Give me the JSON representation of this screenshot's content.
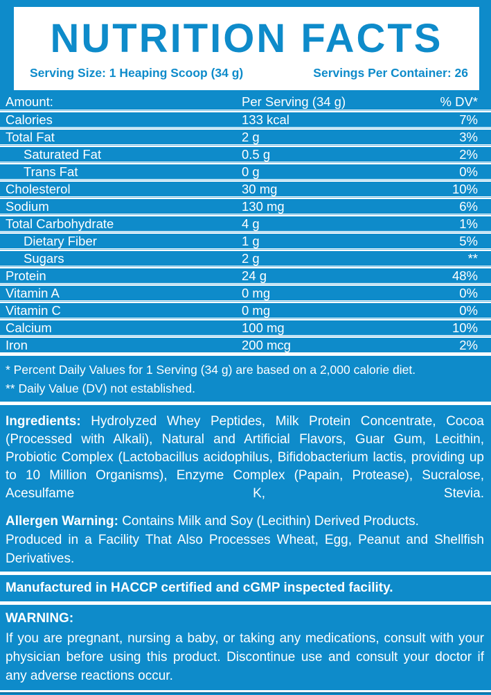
{
  "colors": {
    "background_blue": "#0e8bca",
    "text_white": "#ffffff",
    "separator_gap_blue": "#66b8e2"
  },
  "header": {
    "title": "NUTRITION FACTS",
    "serving_size": "Serving Size: 1 Heaping Scoop (34 g)",
    "servings_per_container": "Servings Per Container: 26"
  },
  "table": {
    "columns": {
      "amount": "Amount:",
      "per_serving": "Per Serving (34 g)",
      "daily_value": "% DV*"
    },
    "rows": [
      {
        "label": "Calories",
        "value": "133 kcal",
        "dv": "7%",
        "indent": false
      },
      {
        "label": "Total Fat",
        "value": "2 g",
        "dv": "3%",
        "indent": false
      },
      {
        "label": "Saturated Fat",
        "value": "0.5 g",
        "dv": "2%",
        "indent": true
      },
      {
        "label": "Trans Fat",
        "value": "0 g",
        "dv": "0%",
        "indent": true
      },
      {
        "label": "Cholesterol",
        "value": "30 mg",
        "dv": "10%",
        "indent": false
      },
      {
        "label": "Sodium",
        "value": "130 mg",
        "dv": "6%",
        "indent": false
      },
      {
        "label": "Total Carbohydrate",
        "value": "4 g",
        "dv": "1%",
        "indent": false
      },
      {
        "label": "Dietary Fiber",
        "value": "1 g",
        "dv": "5%",
        "indent": true
      },
      {
        "label": "Sugars",
        "value": "2 g",
        "dv": "**",
        "indent": true
      },
      {
        "label": "Protein",
        "value": "24 g",
        "dv": "48%",
        "indent": false
      },
      {
        "label": "Vitamin A",
        "value": "0 mg",
        "dv": "0%",
        "indent": false
      },
      {
        "label": "Vitamin C",
        "value": "0 mg",
        "dv": "0%",
        "indent": false
      },
      {
        "label": "Calcium",
        "value": "100 mg",
        "dv": "10%",
        "indent": false
      },
      {
        "label": "Iron",
        "value": "200 mcg",
        "dv": "2%",
        "indent": false
      }
    ]
  },
  "footnotes": [
    "* Percent Daily Values for 1 Serving (34 g) are based on a 2,000 calorie diet.",
    "** Daily Value (DV) not established."
  ],
  "ingredients": {
    "heading": "Ingredients:",
    "text": " Hydrolyzed Whey Peptides, Milk Protein Concentrate, Cocoa (Processed with Alkali), Natural and Artificial Flavors, Guar Gum, Lecithin, Probiotic Complex (Lactobacillus acidophilus, Bifidobacterium lactis, providing up to 10 Million Organisms), Enzyme Complex (Papain, Protease), Sucralose, Acesulfame K, Stevia."
  },
  "allergen": {
    "heading": "Allergen Warning:",
    "statement": " Contains Milk and Soy (Lecithin) Derived Products.",
    "facility": "Produced in a Facility That Also Processes Wheat, Egg, Peanut and Shellfish Derivatives."
  },
  "manufactured": "Manufactured in HACCP certified and cGMP inspected facility.",
  "warning": {
    "heading": "WARNING:",
    "text": "If you are pregnant, nursing a baby, or taking any medications, consult with your physician before using this product. Discontinue use and consult your doctor if any adverse reactions occur."
  }
}
